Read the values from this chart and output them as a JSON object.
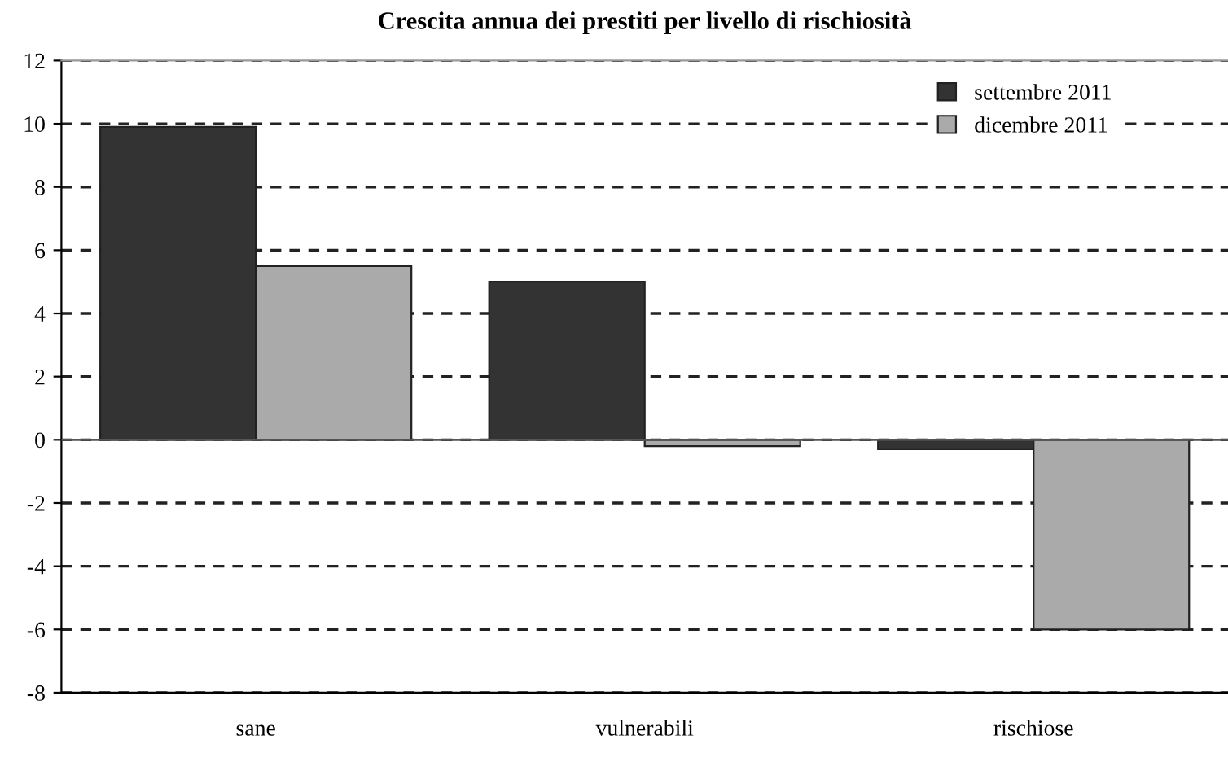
{
  "chart_data": {
    "type": "bar",
    "title": "Crescita annua dei prestiti per livello di rischiosità",
    "categories": [
      "sane",
      "vulnerabili",
      "rischiose"
    ],
    "series": [
      {
        "name": "settembre 2011",
        "color": "#333333",
        "values": [
          9.9,
          5.0,
          -0.3
        ]
      },
      {
        "name": "dicembre 2011",
        "color": "#aaaaaa",
        "values": [
          5.5,
          -0.2,
          -6.0
        ]
      }
    ],
    "ylim": [
      -8,
      12
    ],
    "yticks": [
      -8,
      -6,
      -4,
      -2,
      0,
      2,
      4,
      6,
      8,
      10,
      12
    ],
    "grid": "y",
    "legend": "top right",
    "ref_lines": [
      {
        "axis": "y",
        "value": 0,
        "color": "#555555",
        "line_style": "solid"
      }
    ]
  }
}
